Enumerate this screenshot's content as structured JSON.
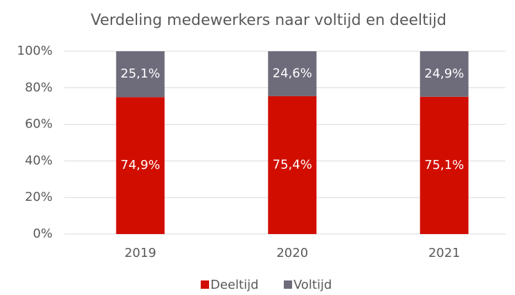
{
  "chart_data": {
    "type": "stacked_bar",
    "title": "Verdeling medewerkers naar voltijd en deeltijd",
    "categories": [
      "2019",
      "2020",
      "2021"
    ],
    "series": [
      {
        "name": "Deeltijd",
        "color": "#d10d00",
        "values": [
          74.9,
          75.4,
          75.1
        ],
        "value_labels": [
          "74,9%",
          "75,4%",
          "75,1%"
        ]
      },
      {
        "name": "Voltijd",
        "color": "#6e6b7b",
        "values": [
          25.1,
          24.6,
          24.9
        ],
        "value_labels": [
          "25,1%",
          "24,6%",
          "24,9%"
        ]
      }
    ],
    "ylim": [
      0,
      100
    ],
    "yticks": [
      {
        "value": 0,
        "label": "0%"
      },
      {
        "value": 20,
        "label": "20%"
      },
      {
        "value": 40,
        "label": "40%"
      },
      {
        "value": 60,
        "label": "60%"
      },
      {
        "value": 80,
        "label": "80%"
      },
      {
        "value": 100,
        "label": "100%"
      }
    ],
    "grid": true,
    "legend": "bottom"
  }
}
